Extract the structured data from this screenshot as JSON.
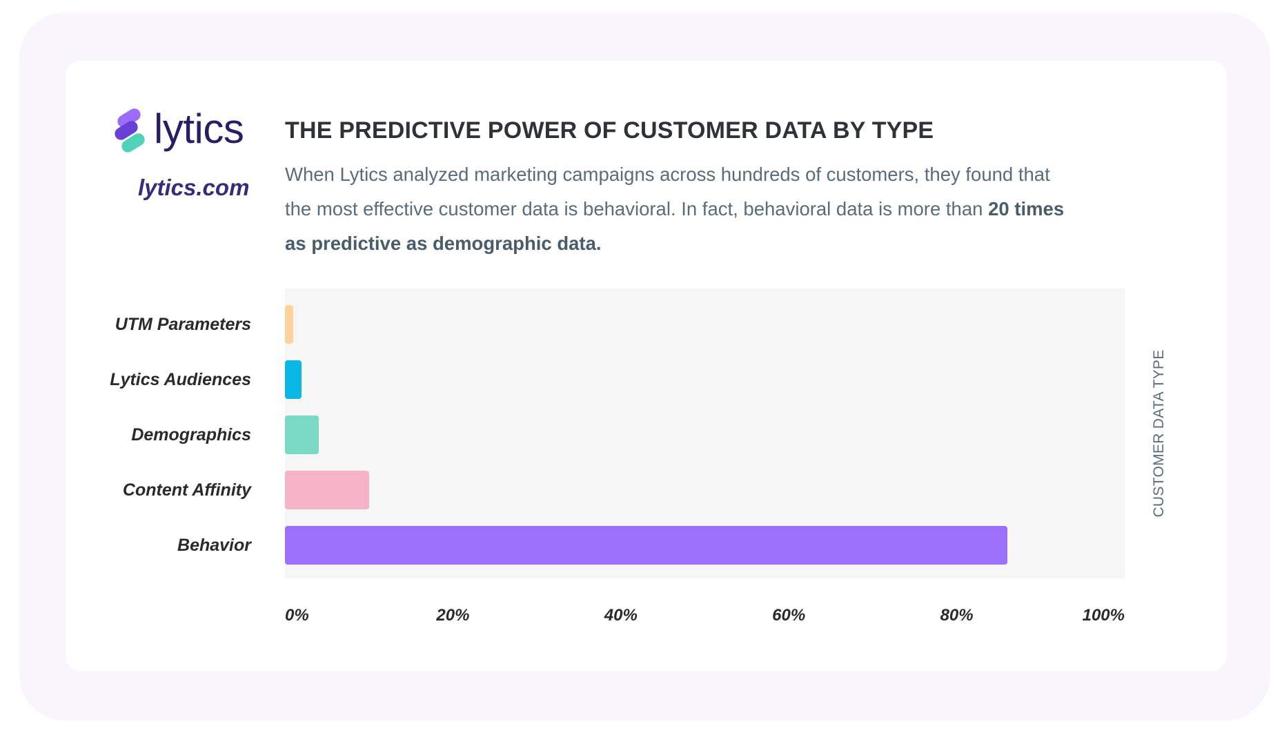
{
  "logo": {
    "text": "lytics",
    "mark_colors": [
      "#9b6cf5",
      "#6a3fd6",
      "#4fd2b8"
    ],
    "text_color": "#2b1d63"
  },
  "site": "lytics.com",
  "chart_data": {
    "type": "bar",
    "orientation": "horizontal",
    "title": "THE PREDICTIVE POWER OF CUSTOMER DATA BY TYPE",
    "subtitle_parts": [
      "When Lytics analyzed marketing campaigns across hundreds of customers, they found that the most effective customer data is behavioral. In fact, behavioral data is more than ",
      "20 times as predictive as demographic data."
    ],
    "categories": [
      "UTM Parameters",
      "Lytics Audiences",
      "Demographics",
      "Content Affinity",
      "Behavior"
    ],
    "values": [
      1,
      2,
      4,
      10,
      86
    ],
    "colors": [
      "#fdd39b",
      "#0bb7e6",
      "#78d9c5",
      "#f6b2c7",
      "#9c70fa"
    ],
    "xlim": [
      0,
      100
    ],
    "xticks": [
      "0%",
      "20%",
      "40%",
      "60%",
      "80%",
      "100%"
    ],
    "ylabel": "CUSTOMER DATA TYPE",
    "grid": false,
    "legend": "none"
  }
}
